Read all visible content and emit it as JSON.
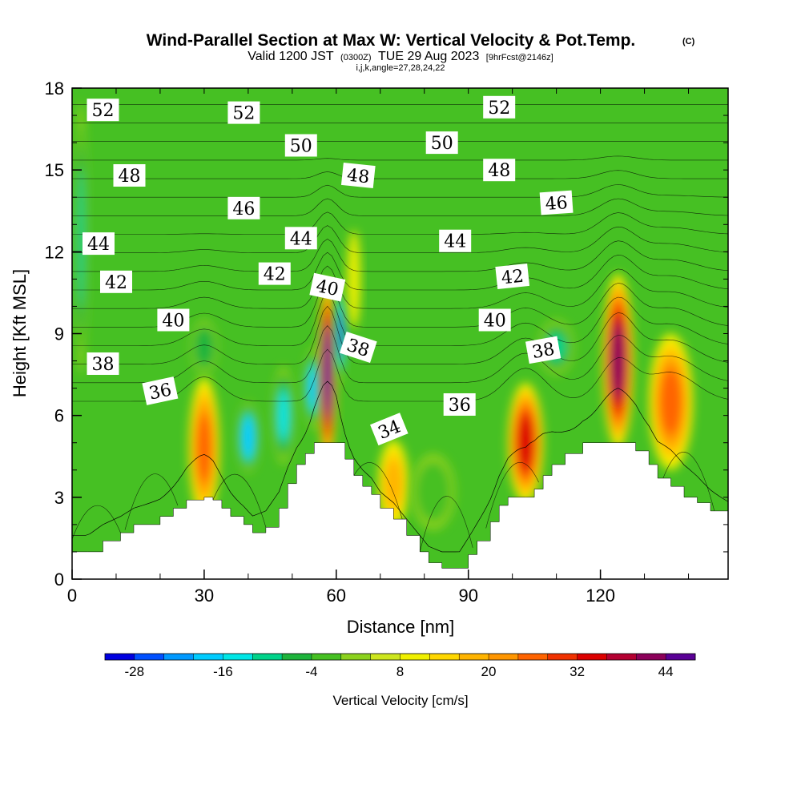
{
  "figure": {
    "title": "Wind-Parallel Section at Max W: Vertical Velocity & Pot.Temp.",
    "copyright_mark": "(C)",
    "subtitle_valid": "Valid 1200 JST",
    "subtitle_utc": "(0300Z)",
    "subtitle_date": "TUE 29 Aug 2023",
    "subtitle_fcst": "[9hrFcst@2146z]",
    "grid_info": "i,j,k,angle=27,28,24,22"
  },
  "chart_data": {
    "type": "heatmap",
    "xlabel": "Distance [nm]",
    "ylabel": "Height [Kft MSL]",
    "xlim": [
      0,
      149
    ],
    "ylim": [
      0,
      18
    ],
    "x_ticks": [
      0,
      30,
      60,
      90,
      120
    ],
    "y_ticks": [
      0,
      3,
      6,
      9,
      12,
      15,
      18
    ],
    "colorbar": {
      "label": "Vertical Velocity [cm/s]",
      "tick_values": [
        -28,
        -16,
        -4,
        8,
        20,
        32,
        44
      ],
      "min": -32,
      "step": 4,
      "colors": [
        "#0000e0",
        "#0050ff",
        "#0099ff",
        "#00ccff",
        "#00e6e6",
        "#00d38a",
        "#1eb43c",
        "#46c023",
        "#8cd21e",
        "#cde61e",
        "#f0f000",
        "#ffd700",
        "#ffb400",
        "#ff9600",
        "#ff6400",
        "#f03200",
        "#dc0000",
        "#b40032",
        "#8c005a",
        "#5a0096"
      ]
    },
    "terrain_kft": [
      [
        0,
        1.0
      ],
      [
        3.5,
        1.0
      ],
      [
        7,
        1.4
      ],
      [
        11,
        1.7
      ],
      [
        14,
        2.0
      ],
      [
        20,
        2.3
      ],
      [
        23,
        2.6
      ],
      [
        26,
        2.9
      ],
      [
        30,
        3.0
      ],
      [
        32,
        2.9
      ],
      [
        34,
        2.6
      ],
      [
        36,
        2.3
      ],
      [
        39,
        2.0
      ],
      [
        41,
        1.7
      ],
      [
        44,
        1.9
      ],
      [
        47,
        2.6
      ],
      [
        49,
        3.5
      ],
      [
        51,
        4.2
      ],
      [
        53,
        4.6
      ],
      [
        55,
        5.0
      ],
      [
        60,
        5.0
      ],
      [
        62,
        4.4
      ],
      [
        64,
        3.8
      ],
      [
        66,
        3.4
      ],
      [
        68,
        3.1
      ],
      [
        70,
        2.6
      ],
      [
        73,
        2.2
      ],
      [
        76,
        1.6
      ],
      [
        79,
        1.0
      ],
      [
        81,
        0.6
      ],
      [
        84,
        0.4
      ],
      [
        88,
        0.4
      ],
      [
        90,
        0.9
      ],
      [
        92,
        1.4
      ],
      [
        95,
        2.1
      ],
      [
        97,
        2.7
      ],
      [
        99,
        3.0
      ],
      [
        103,
        3.0
      ],
      [
        105,
        3.3
      ],
      [
        107,
        3.8
      ],
      [
        109,
        4.2
      ],
      [
        112,
        4.6
      ],
      [
        116,
        5.0
      ],
      [
        124,
        5.0
      ],
      [
        128,
        4.7
      ],
      [
        131,
        4.2
      ],
      [
        133,
        3.7
      ],
      [
        136,
        3.4
      ],
      [
        139,
        3.0
      ],
      [
        142,
        2.8
      ],
      [
        145,
        2.5
      ],
      [
        149,
        2.2
      ]
    ],
    "w_cells": [
      {
        "x": 30,
        "y": 4.8,
        "rx": 3.5,
        "ry": 2.6,
        "w": 26
      },
      {
        "x": 40,
        "y": 5.2,
        "rx": 2.5,
        "ry": 1.3,
        "w": -20
      },
      {
        "x": 48,
        "y": 6.0,
        "rx": 2.5,
        "ry": 1.8,
        "w": -14
      },
      {
        "x": 55,
        "y": 7.0,
        "rx": 2.5,
        "ry": 1.5,
        "w": -18
      },
      {
        "x": 58,
        "y": 7.6,
        "rx": 2.0,
        "ry": 3.4,
        "w": 50
      },
      {
        "x": 61,
        "y": 9.0,
        "rx": 1.2,
        "ry": 1.8,
        "w": -26
      },
      {
        "x": 73,
        "y": 3.5,
        "rx": 3.5,
        "ry": 1.6,
        "w": 16
      },
      {
        "x": 82,
        "y": 3.2,
        "rx": 5.0,
        "ry": 1.4,
        "w": -4
      },
      {
        "x": 103,
        "y": 5.0,
        "rx": 4.0,
        "ry": 2.2,
        "w": 34
      },
      {
        "x": 124,
        "y": 8.0,
        "rx": 3.5,
        "ry": 3.2,
        "w": 42
      },
      {
        "x": 136,
        "y": 6.5,
        "rx": 5.0,
        "ry": 2.5,
        "w": 24
      },
      {
        "x": 2,
        "y": 12.5,
        "rx": 1.5,
        "ry": 5.0,
        "w": -10
      },
      {
        "x": 64,
        "y": 11.0,
        "rx": 1.5,
        "ry": 1.8,
        "w": 10
      },
      {
        "x": 30,
        "y": 8.5,
        "rx": 3.0,
        "ry": 1.0,
        "w": -8
      },
      {
        "x": 110,
        "y": 8.5,
        "rx": 4.0,
        "ry": 1.0,
        "w": -10
      }
    ],
    "theta_labels": [
      {
        "text": "52",
        "x": 7,
        "y": 17.2,
        "rot": 0
      },
      {
        "text": "52",
        "x": 39,
        "y": 17.1,
        "rot": 0
      },
      {
        "text": "52",
        "x": 97,
        "y": 17.3,
        "rot": 0
      },
      {
        "text": "50",
        "x": 52,
        "y": 15.9,
        "rot": 0
      },
      {
        "text": "50",
        "x": 84,
        "y": 16.0,
        "rot": 0
      },
      {
        "text": "48",
        "x": 13,
        "y": 14.8,
        "rot": 0
      },
      {
        "text": "48",
        "x": 65,
        "y": 14.8,
        "rot": 6
      },
      {
        "text": "48",
        "x": 97,
        "y": 15.0,
        "rot": 0
      },
      {
        "text": "46",
        "x": 39,
        "y": 13.6,
        "rot": 0
      },
      {
        "text": "46",
        "x": 110,
        "y": 13.8,
        "rot": -4
      },
      {
        "text": "44",
        "x": 6,
        "y": 12.3,
        "rot": 0
      },
      {
        "text": "44",
        "x": 52,
        "y": 12.5,
        "rot": 0
      },
      {
        "text": "44",
        "x": 87,
        "y": 12.4,
        "rot": 0
      },
      {
        "text": "42",
        "x": 10,
        "y": 10.9,
        "rot": 0
      },
      {
        "text": "42",
        "x": 46,
        "y": 11.2,
        "rot": 0
      },
      {
        "text": "42",
        "x": 100,
        "y": 11.1,
        "rot": -6
      },
      {
        "text": "40",
        "x": 58,
        "y": 10.7,
        "rot": 12
      },
      {
        "text": "40",
        "x": 23,
        "y": 9.5,
        "rot": 0
      },
      {
        "text": "40",
        "x": 96,
        "y": 9.5,
        "rot": 0
      },
      {
        "text": "38",
        "x": 7,
        "y": 7.9,
        "rot": 0
      },
      {
        "text": "38",
        "x": 65,
        "y": 8.5,
        "rot": 18
      },
      {
        "text": "38",
        "x": 107,
        "y": 8.4,
        "rot": -10
      },
      {
        "text": "36",
        "x": 20,
        "y": 6.9,
        "rot": -12
      },
      {
        "text": "36",
        "x": 88,
        "y": 6.4,
        "rot": 0
      },
      {
        "text": "34",
        "x": 72,
        "y": 5.5,
        "rot": -22
      }
    ]
  }
}
